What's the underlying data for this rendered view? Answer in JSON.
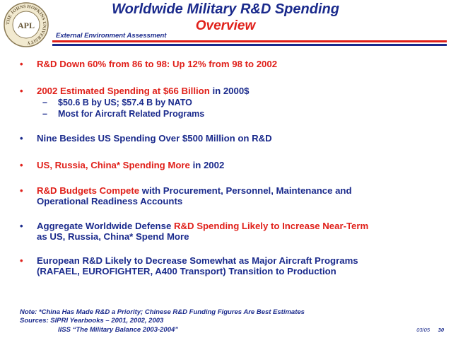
{
  "seal": {
    "ring_text": "THE JOHNS HOPKINS UNIVERSITY",
    "monogram": "APL"
  },
  "header": {
    "title": "Worldwide Military R&D Spending",
    "subtitle": "Overview",
    "section": "External Environment Assessment"
  },
  "bullets": [
    {
      "segments": [
        {
          "text": "R&D Down 60% from 86 to 98: Up 12% from 98 to 2002",
          "red": true
        }
      ]
    },
    {
      "segments": [
        {
          "text": "2002 Estimated Spending at $66 Billion",
          "red": true
        },
        {
          "text": " in 2000$",
          "red": false
        }
      ]
    },
    {
      "segments": [
        {
          "text": "Nine Besides US Spending Over $500 Million on R&D",
          "red": false
        }
      ]
    },
    {
      "segments": [
        {
          "text": "US, Russia, China* Spending More",
          "red": true
        },
        {
          "text": " in 2002",
          "red": false
        }
      ]
    },
    {
      "segments": [
        {
          "text": "R&D Budgets Compete",
          "red": true
        },
        {
          "text": " with Procurement, Personnel, Maintenance and",
          "red": false
        }
      ],
      "line2": "Operational Readiness Accounts"
    },
    {
      "segments": [
        {
          "text": "Aggregate Worldwide Defense ",
          "red": false
        },
        {
          "text": "R&D Spending Likely to Increase Near-Term",
          "red": true
        }
      ],
      "line2": "as US, Russia, China* Spend More"
    },
    {
      "segments": [
        {
          "text": "European R&D Likely to Decrease Somewhat as Major Aircraft Programs",
          "red": false
        }
      ],
      "line2": "(RAFAEL, EUROFIGHTER, A400 Transport) Transition to Production"
    }
  ],
  "sub_bullets": [
    "$50.6 B by US; $57.4 B by NATO",
    "Most for Aircraft Related Programs"
  ],
  "notes": {
    "line1": "Note: *China Has Made R&D a Priority; Chinese R&D Funding Figures Are Best Estimates",
    "line2": "Sources: SIPRI Yearbooks – 2001, 2002, 2003",
    "line3": "IISS “The Military Balance 2003-2004”"
  },
  "footer": {
    "date": "03/05",
    "page": "30"
  }
}
